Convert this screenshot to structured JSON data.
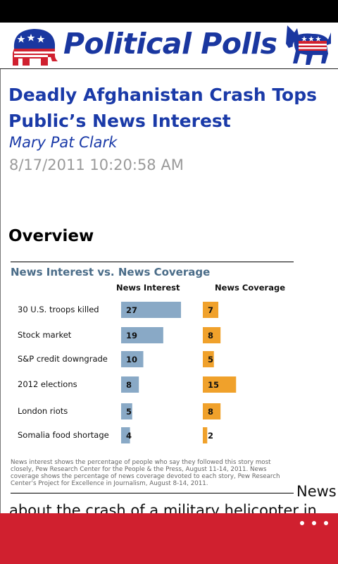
{
  "header": {
    "title": "Political Polls",
    "left_logo_icon": "republican-elephant-icon",
    "right_logo_icon": "democratic-donkey-icon"
  },
  "article": {
    "headline": "Deadly Afghanistan Crash Tops Public’s News Interest",
    "author": "Mary Pat Clark",
    "date": "8/17/2011 10:20:58 AM",
    "section_heading": "Overview",
    "body_inline_word": "News",
    "body_partial_line": "about the crash of a military helicopter in"
  },
  "chart_data": {
    "type": "bar",
    "title": "News Interest vs. News Coverage",
    "categories": [
      "30 U.S. troops killed",
      "Stock market",
      "S&P credit downgrade",
      "2012 elections",
      "London riots",
      "Somalia food shortage"
    ],
    "series": [
      {
        "name": "News Interest",
        "values": [
          27,
          19,
          10,
          8,
          5,
          4
        ],
        "color": "#89a9c6"
      },
      {
        "name": "News Coverage",
        "values": [
          7,
          8,
          5,
          15,
          8,
          2
        ],
        "color": "#f0a12b"
      }
    ],
    "note": "News interest shows the percentage of people who say they followed this story most closely, Pew Research Center for the People & the Press, August 11-14, 2011. News coverage shows the percentage of news coverage devoted to each story, Pew Research Center’s Project for Excellence in Journalism, August 8-14, 2011."
  },
  "app_bar": {
    "more_icon": "ellipsis-more-icon",
    "color": "#d0202f"
  }
}
